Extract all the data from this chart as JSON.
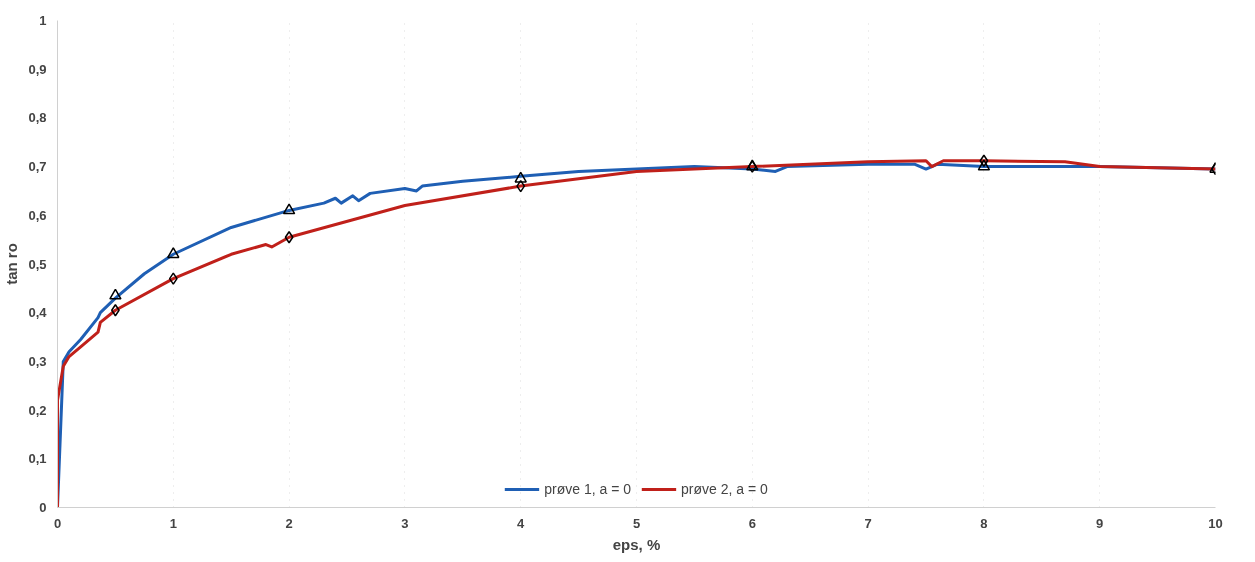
{
  "chart_data": {
    "type": "line",
    "xlabel": "eps, %",
    "ylabel": "tan ro",
    "xlim": [
      0,
      10
    ],
    "ylim": [
      0,
      1
    ],
    "xticks": [
      0,
      1,
      2,
      3,
      4,
      5,
      6,
      7,
      8,
      9,
      10
    ],
    "yticks": [
      0,
      {
        "value": 0.1,
        "label": "0,1"
      },
      {
        "value": 0.2,
        "label": "0,2"
      },
      {
        "value": 0.3,
        "label": "0,3"
      },
      {
        "value": 0.4,
        "label": "0,4"
      },
      {
        "value": 0.5,
        "label": "0,5"
      },
      {
        "value": 0.6,
        "label": "0,6"
      },
      {
        "value": 0.7,
        "label": "0,7"
      },
      {
        "value": 0.8,
        "label": "0,8"
      },
      {
        "value": 0.9,
        "label": "0,9"
      },
      1
    ],
    "grid": "x",
    "legend": "bottom",
    "line_style": "solid",
    "series": [
      {
        "name": "prøve 1, a = 0",
        "color": "#1f5fb4",
        "x": [
          0,
          0.05,
          0.1,
          0.2,
          0.35,
          0.37,
          0.5,
          0.75,
          1,
          1.5,
          2,
          2.3,
          2.4,
          2.45,
          2.55,
          2.6,
          2.7,
          3,
          3.1,
          3.15,
          3.5,
          4,
          4.5,
          5,
          5.5,
          6,
          6.2,
          6.3,
          7,
          7.4,
          7.5,
          7.6,
          8,
          9,
          10
        ],
        "values": [
          0,
          0.3,
          0.32,
          0.345,
          0.39,
          0.4,
          0.43,
          0.48,
          0.52,
          0.575,
          0.61,
          0.625,
          0.635,
          0.625,
          0.64,
          0.63,
          0.645,
          0.655,
          0.65,
          0.66,
          0.67,
          0.68,
          0.69,
          0.695,
          0.7,
          0.695,
          0.69,
          0.7,
          0.705,
          0.705,
          0.695,
          0.705,
          0.7,
          0.7,
          0.695
        ]
      },
      {
        "name": "prøve 2, a = 0",
        "color": "#c0201a",
        "x": [
          0,
          0,
          0.05,
          0.1,
          0.2,
          0.35,
          0.37,
          0.5,
          1,
          1.5,
          1.8,
          1.85,
          2,
          3,
          4,
          5,
          6,
          7,
          7.5,
          7.55,
          7.65,
          8,
          8.7,
          9,
          10
        ],
        "values": [
          0,
          0.22,
          0.29,
          0.31,
          0.33,
          0.36,
          0.38,
          0.405,
          0.47,
          0.52,
          0.54,
          0.535,
          0.555,
          0.62,
          0.66,
          0.69,
          0.7,
          0.71,
          0.712,
          0.7,
          0.712,
          0.712,
          0.71,
          0.7,
          0.695
        ]
      },
      {
        "type": "scatter",
        "marker": "triangle",
        "color": "#000000",
        "x": [
          0.5,
          1,
          2,
          4,
          6,
          8,
          10
        ],
        "values": [
          0.435,
          0.52,
          0.61,
          0.675,
          0.7,
          0.7,
          0.695
        ]
      },
      {
        "type": "scatter",
        "marker": "diamond",
        "color": "#000000",
        "x": [
          0.5,
          1,
          2,
          4,
          6,
          8,
          10
        ],
        "values": [
          0.405,
          0.47,
          0.555,
          0.66,
          0.7,
          0.712,
          0.695
        ]
      }
    ]
  }
}
